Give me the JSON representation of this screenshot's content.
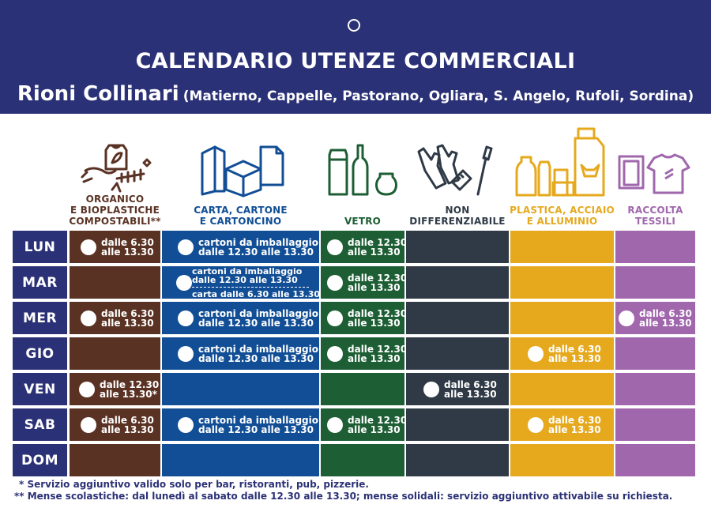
{
  "header": {
    "title": "CALENDARIO UTENZE COMMERCIALI",
    "subtitle": "Rioni Collinari",
    "areas": "(Matierno, Cappelle, Pastorano, Ogliara, S. Angelo, Rufoli, Sordina)"
  },
  "colors": {
    "header": "#2b3176",
    "organico": "#5a3224",
    "carta": "#114e95",
    "vetro": "#1d5e34",
    "indifferenziato": "#2f3a46",
    "plastica": "#e6a91e",
    "tessili": "#a067ad"
  },
  "columns": [
    {
      "line1": "ORGANICO",
      "line2": "E BIOPLASTICHE",
      "line3": "COMPOSTABILI**"
    },
    {
      "line1": "CARTA, CARTONE",
      "line2": "E CARTONCINO"
    },
    {
      "line1": "VETRO"
    },
    {
      "line1": "NON",
      "line2": "DIFFERENZIABILE"
    },
    {
      "line1": "PLASTICA, ACCIAIO",
      "line2": "E ALLUMINIO"
    },
    {
      "line1": "RACCOLTA",
      "line2": "TESSILI"
    }
  ],
  "days": [
    "LUN",
    "MAR",
    "MER",
    "GIO",
    "VEN",
    "SAB",
    "DOM"
  ],
  "schedule": {
    "lun": {
      "organico": {
        "l1": "dalle 6.30",
        "l2": "alle 13.30"
      },
      "carta": {
        "l1": "cartoni da imballaggio",
        "l2": "dalle 12.30 alle 13.30"
      },
      "vetro": {
        "l1": "dalle 12.30",
        "l2": "alle 13.30"
      }
    },
    "mar": {
      "carta": {
        "l1": "cartoni da imballaggio",
        "l2": "dalle 12.30 alle 13.30",
        "l3": "carta dalle 6.30 alle 13.30"
      },
      "vetro": {
        "l1": "dalle 12.30",
        "l2": "alle 13.30"
      }
    },
    "mer": {
      "organico": {
        "l1": "dalle 6.30",
        "l2": "alle 13.30"
      },
      "carta": {
        "l1": "cartoni da imballaggio",
        "l2": "dalle 12.30 alle 13.30"
      },
      "vetro": {
        "l1": "dalle 12.30",
        "l2": "alle 13.30"
      },
      "tessili": {
        "l1": "dalle 6.30",
        "l2": "alle 13.30"
      }
    },
    "gio": {
      "carta": {
        "l1": "cartoni da imballaggio",
        "l2": "dalle 12.30 alle 13.30"
      },
      "vetro": {
        "l1": "dalle 12.30",
        "l2": "alle 13.30"
      },
      "plastica": {
        "l1": "dalle 6.30",
        "l2": "alle 13.30"
      }
    },
    "ven": {
      "organico": {
        "l1": "dalle 12.30",
        "l2": "alle 13.30*"
      },
      "indifferenziato": {
        "l1": "dalle 6.30",
        "l2": "alle 13.30"
      }
    },
    "sab": {
      "organico": {
        "l1": "dalle 6.30",
        "l2": "alle 13.30"
      },
      "carta": {
        "l1": "cartoni da imballaggio",
        "l2": "dalle 12.30 alle 13.30"
      },
      "vetro": {
        "l1": "dalle 12.30",
        "l2": "alle 13.30"
      },
      "plastica": {
        "l1": "dalle 6.30",
        "l2": "alle 13.30"
      }
    }
  },
  "footnotes": {
    "one": "* Servizio aggiuntivo valido solo per bar, ristoranti, pub, pizzerie.",
    "two": "** Mense scolastiche: dal lunedì al sabato dalle 12.30 alle 13.30; mense solidali: servizio aggiuntivo attivabile su richiesta."
  },
  "icons": [
    "organic-waste-icon",
    "paper-cardboard-icon",
    "glass-bottles-icon",
    "gloves-toothbrush-icon",
    "plastic-metal-containers-icon",
    "textile-clothes-icon"
  ]
}
